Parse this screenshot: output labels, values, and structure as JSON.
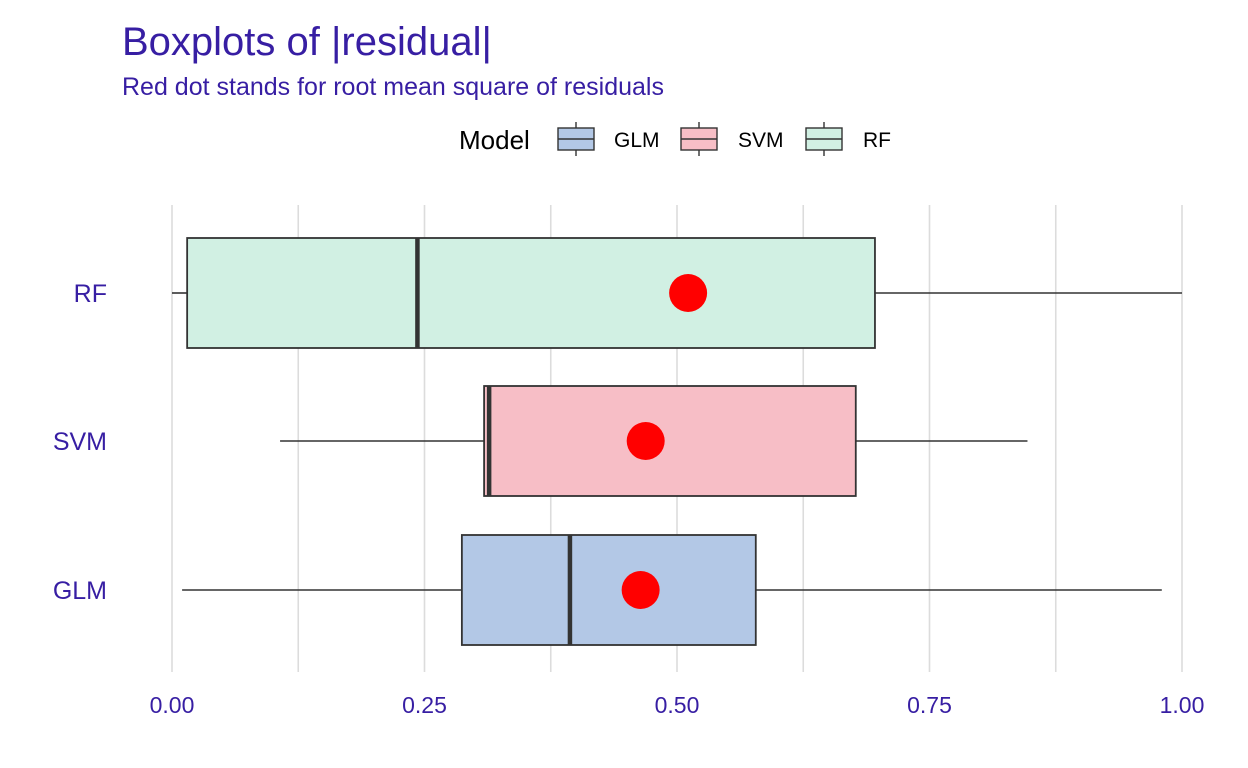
{
  "chart_data": {
    "type": "boxplot",
    "title": "Boxplots of |residual|",
    "subtitle": "Red dot stands for root mean square of residuals",
    "legend": {
      "title": "Model",
      "position": "top",
      "entries": [
        {
          "label": "GLM",
          "color": "#b3c8e6"
        },
        {
          "label": "SVM",
          "color": "#f7bec6"
        },
        {
          "label": "RF",
          "color": "#d1f0e3"
        }
      ]
    },
    "xlim": [
      0,
      1
    ],
    "x_ticks": [
      "0.00",
      "0.25",
      "0.50",
      "0.75",
      "1.00"
    ],
    "x_tick_values": [
      0,
      0.25,
      0.5,
      0.75,
      1.0
    ],
    "grid": true,
    "categories": [
      "GLM",
      "SVM",
      "RF"
    ],
    "series": [
      {
        "name": "GLM",
        "min": 0.01,
        "q1": 0.287,
        "median": 0.394,
        "q3": 0.578,
        "max": 0.98,
        "rms": 0.464,
        "color": "#b3c8e6"
      },
      {
        "name": "SVM",
        "min": 0.107,
        "q1": 0.309,
        "median": 0.314,
        "q3": 0.677,
        "max": 0.847,
        "rms": 0.469,
        "color": "#f7bec6"
      },
      {
        "name": "RF",
        "min": 0.0,
        "q1": 0.015,
        "median": 0.243,
        "q3": 0.696,
        "max": 1.0,
        "rms": 0.511,
        "color": "#d1f0e3"
      }
    ],
    "rms_color": "#ff0000",
    "text_color": "#371ea3",
    "grid_color": "#dcdcdc",
    "outline_color": "#333333"
  }
}
